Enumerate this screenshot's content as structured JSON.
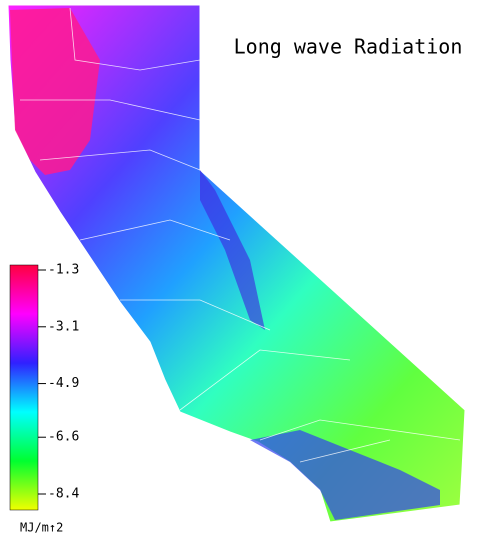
{
  "title": "Long wave Radiation",
  "colorbar": {
    "label": "MJ/m↑2",
    "lim": [
      -1.3,
      -8.4
    ],
    "ticks": [
      -1.3,
      -3.1,
      -4.9,
      -6.6,
      -8.4
    ],
    "colors": [
      "#ff0040",
      "#ff00ff",
      "#3020ff",
      "#00ffff",
      "#00ff30",
      "#f0ff00"
    ]
  }
}
